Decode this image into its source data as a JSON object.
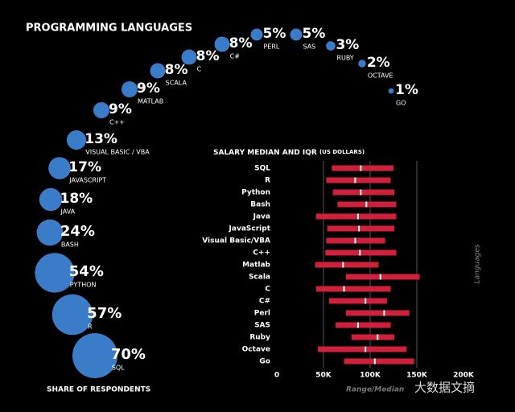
{
  "chart_data": [
    {
      "type": "bubble",
      "title": "PROGRAMMING LANGUAGES",
      "xlabel": "SHARE OF RESPONDENTS",
      "categories": [
        "SQL",
        "R",
        "PYTHON",
        "BASH",
        "JAVA",
        "JAVASCRIPT",
        "VISUAL BASIC / VBA",
        "C++",
        "MATLAB",
        "SCALA",
        "C",
        "C#",
        "PERL",
        "SAS",
        "RUBY",
        "OCTAVE",
        "GO"
      ],
      "values": [
        70,
        57,
        54,
        24,
        18,
        17,
        13,
        9,
        9,
        8,
        8,
        8,
        5,
        5,
        3,
        2,
        1
      ],
      "value_labels": [
        "70%",
        "57%",
        "54%",
        "24%",
        "18%",
        "17%",
        "13%",
        "9%",
        "9%",
        "8%",
        "8%",
        "8%",
        "5%",
        "5%",
        "3%",
        "2%",
        "1%"
      ],
      "color": "#3b7cc9"
    },
    {
      "type": "range",
      "title": "SALARY MEDIAN AND IQR",
      "subtitle": "(US DOLLARS)",
      "xlabel": "Range/Median",
      "ylabel": "Languages",
      "categories": [
        "SQL",
        "R",
        "Python",
        "Bash",
        "Java",
        "JavaScript",
        "Visual Basic/VBA",
        "C++",
        "Matlab",
        "Scala",
        "C",
        "C#",
        "Perl",
        "SAS",
        "Ruby",
        "Octave",
        "Go"
      ],
      "series": [
        {
          "name": "low",
          "values": [
            59000,
            53000,
            60000,
            65000,
            42000,
            54000,
            53000,
            52000,
            41000,
            74000,
            42000,
            56000,
            74000,
            63000,
            80000,
            44000,
            72000
          ]
        },
        {
          "name": "median",
          "values": [
            90000,
            84000,
            90000,
            96000,
            87000,
            88000,
            84000,
            89000,
            71000,
            111000,
            72000,
            95000,
            115000,
            87000,
            108000,
            95000,
            105000
          ]
        },
        {
          "name": "high",
          "values": [
            125000,
            122000,
            126000,
            128000,
            128000,
            126000,
            116000,
            128000,
            109000,
            153000,
            122000,
            118000,
            142000,
            122000,
            126000,
            139000,
            147000
          ]
        }
      ],
      "color": "#d21f3c",
      "median_color": "#ffffff",
      "xlim": [
        0,
        200000
      ],
      "xticks": [
        0,
        {
          "value": 50000,
          "label": "50K"
        },
        {
          "value": 100000,
          "label": "100K"
        },
        {
          "value": 150000,
          "label": "150K"
        },
        {
          "value": 200000,
          "label": "200K"
        }
      ],
      "grid": true
    }
  ],
  "watermark": "大数据文摘"
}
